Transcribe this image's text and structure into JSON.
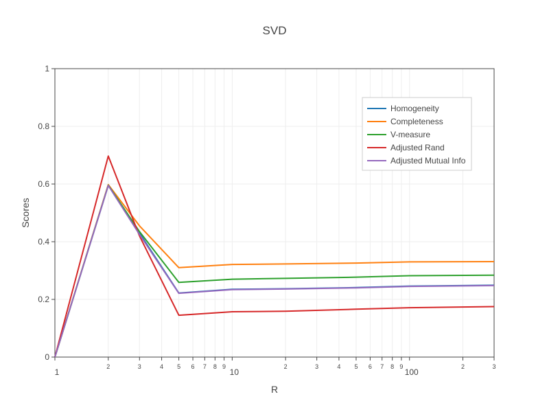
{
  "chart_data": {
    "type": "line",
    "title": "SVD",
    "xlabel": "R",
    "ylabel": "Scores",
    "xscale": "log",
    "xlim": [
      1,
      300
    ],
    "ylim": [
      0,
      1
    ],
    "grid": true,
    "legend_position": "top-right",
    "x_major_ticks": [
      {
        "value": 1,
        "label": "1"
      },
      {
        "value": 10,
        "label": "10"
      },
      {
        "value": 100,
        "label": "100"
      }
    ],
    "x_minor_ticks": [
      {
        "value": 2,
        "label": "2"
      },
      {
        "value": 3,
        "label": "3"
      },
      {
        "value": 4,
        "label": "4"
      },
      {
        "value": 5,
        "label": "5"
      },
      {
        "value": 6,
        "label": "6"
      },
      {
        "value": 7,
        "label": "7"
      },
      {
        "value": 8,
        "label": "8"
      },
      {
        "value": 9,
        "label": "9"
      },
      {
        "value": 20,
        "label": "2"
      },
      {
        "value": 30,
        "label": "3"
      },
      {
        "value": 40,
        "label": "4"
      },
      {
        "value": 50,
        "label": "5"
      },
      {
        "value": 60,
        "label": "6"
      },
      {
        "value": 70,
        "label": "7"
      },
      {
        "value": 80,
        "label": "8"
      },
      {
        "value": 90,
        "label": "9"
      },
      {
        "value": 200,
        "label": "2"
      },
      {
        "value": 300,
        "label": "3"
      }
    ],
    "y_ticks": [
      {
        "value": 0,
        "label": "0"
      },
      {
        "value": 0.2,
        "label": "0.2"
      },
      {
        "value": 0.4,
        "label": "0.4"
      },
      {
        "value": 0.6,
        "label": "0.6"
      },
      {
        "value": 0.8,
        "label": "0.8"
      },
      {
        "value": 1,
        "label": "1"
      }
    ],
    "x": [
      1,
      2,
      3,
      5,
      10,
      20,
      50,
      100,
      300
    ],
    "series": [
      {
        "name": "Homogeneity",
        "color": "#1f77b4",
        "values": [
          0.0,
          0.595,
          0.43,
          0.222,
          0.235,
          0.237,
          0.241,
          0.246,
          0.249
        ]
      },
      {
        "name": "Completeness",
        "color": "#ff7f0e",
        "values": [
          0.0,
          0.598,
          0.455,
          0.31,
          0.321,
          0.323,
          0.326,
          0.33,
          0.331
        ]
      },
      {
        "name": "V-measure",
        "color": "#2ca02c",
        "values": [
          0.0,
          0.596,
          0.435,
          0.259,
          0.27,
          0.273,
          0.277,
          0.282,
          0.284
        ]
      },
      {
        "name": "Adjusted Rand",
        "color": "#d62728",
        "values": [
          0.0,
          0.697,
          0.42,
          0.145,
          0.157,
          0.159,
          0.166,
          0.171,
          0.175
        ]
      },
      {
        "name": "Adjusted Mutual Info",
        "color": "#9467bd",
        "values": [
          0.0,
          0.595,
          0.425,
          0.221,
          0.234,
          0.236,
          0.24,
          0.245,
          0.248
        ]
      }
    ]
  }
}
